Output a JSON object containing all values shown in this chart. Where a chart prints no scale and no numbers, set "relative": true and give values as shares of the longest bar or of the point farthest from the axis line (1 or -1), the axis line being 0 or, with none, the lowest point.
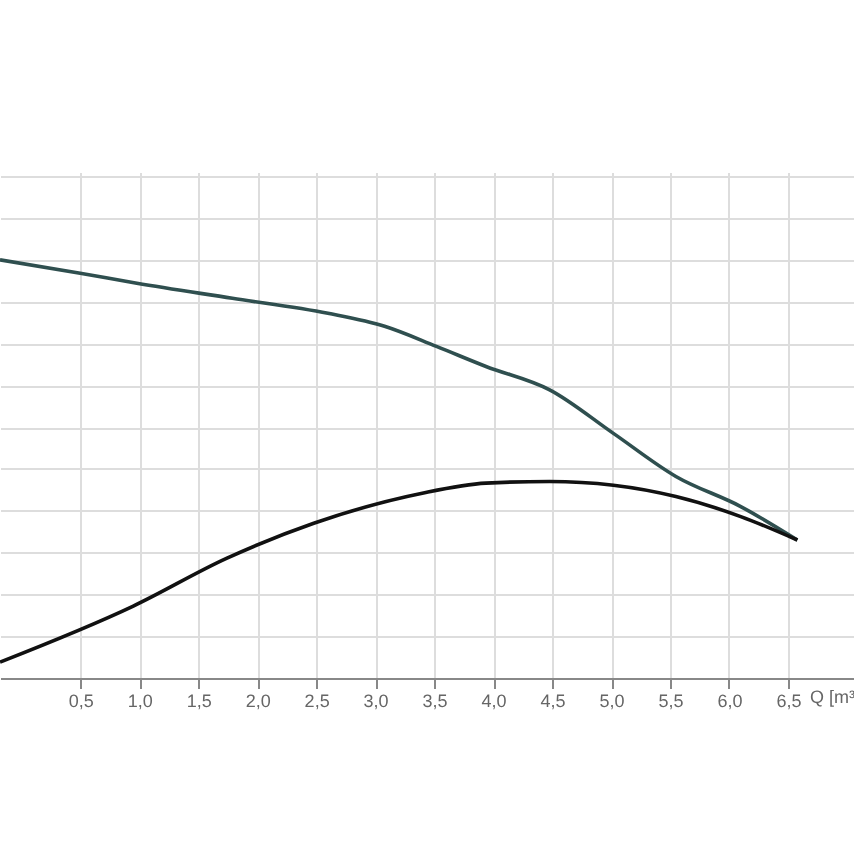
{
  "chart_data": {
    "type": "line",
    "relative": true,
    "xlabel": "Q [m³",
    "xlim": [
      -0.18,
      7.06
    ],
    "xticks": [
      {
        "value": 0.5,
        "label": "0,5"
      },
      {
        "value": 1.0,
        "label": "1,0"
      },
      {
        "value": 1.5,
        "label": "1,5"
      },
      {
        "value": 2.0,
        "label": "2,0"
      },
      {
        "value": 2.5,
        "label": "2,5"
      },
      {
        "value": 3.0,
        "label": "3,0"
      },
      {
        "value": 3.5,
        "label": "3,5"
      },
      {
        "value": 4.0,
        "label": "4,0"
      },
      {
        "value": 4.5,
        "label": "4,5"
      },
      {
        "value": 5.0,
        "label": "5,0"
      },
      {
        "value": 5.5,
        "label": "5,5"
      },
      {
        "value": 6.0,
        "label": "6,0"
      },
      {
        "value": 6.5,
        "label": "6,5"
      }
    ],
    "grid": true,
    "marker": "none",
    "line_style": "solid",
    "series": [
      {
        "color": "#2f4f4f",
        "x": [
          -0.18,
          0.5,
          0.98,
          1.79,
          2.6,
          3.08,
          3.52,
          3.94,
          4.48,
          5.02,
          5.55,
          6.1,
          6.58
        ],
        "values": [
          1.0,
          0.968,
          0.944,
          0.908,
          0.872,
          0.841,
          0.793,
          0.745,
          0.689,
          0.585,
          0.482,
          0.41,
          0.33
        ]
      },
      {
        "color": "#111111",
        "x": [
          -0.18,
          0.95,
          1.74,
          2.48,
          3.4,
          3.94,
          4.48,
          5.02,
          5.55,
          6.1,
          6.58
        ],
        "values": [
          0.038,
          0.172,
          0.286,
          0.37,
          0.442,
          0.466,
          0.47,
          0.461,
          0.434,
          0.386,
          0.33
        ]
      }
    ]
  }
}
